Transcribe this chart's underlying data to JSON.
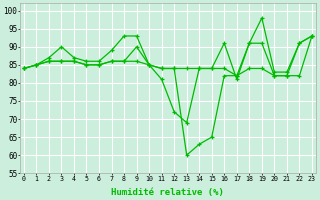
{
  "xlabel": "Humidité relative (%)",
  "x_ticks": [
    0,
    1,
    2,
    3,
    4,
    5,
    6,
    7,
    8,
    9,
    10,
    11,
    12,
    13,
    14,
    15,
    16,
    17,
    18,
    19,
    20,
    21,
    22,
    23
  ],
  "ylim": [
    55,
    102
  ],
  "xlim": [
    -0.3,
    23.3
  ],
  "yticks": [
    55,
    60,
    65,
    70,
    75,
    80,
    85,
    90,
    95,
    100
  ],
  "bg_color": "#cceedd",
  "grid_color": "#ffffff",
  "line_color": "#00bb00",
  "series": [
    [
      84,
      85,
      87,
      90,
      87,
      86,
      86,
      89,
      93,
      93,
      85,
      81,
      72,
      69,
      84,
      84,
      91,
      81,
      91,
      98,
      83,
      83,
      91,
      93
    ],
    [
      84,
      85,
      86,
      86,
      86,
      85,
      85,
      86,
      86,
      90,
      85,
      84,
      84,
      60,
      63,
      65,
      82,
      82,
      91,
      91,
      82,
      82,
      82,
      93
    ],
    [
      84,
      85,
      86,
      86,
      86,
      85,
      85,
      86,
      86,
      86,
      85,
      84,
      84,
      84,
      84,
      84,
      84,
      82,
      84,
      84,
      82,
      82,
      91,
      93
    ]
  ]
}
